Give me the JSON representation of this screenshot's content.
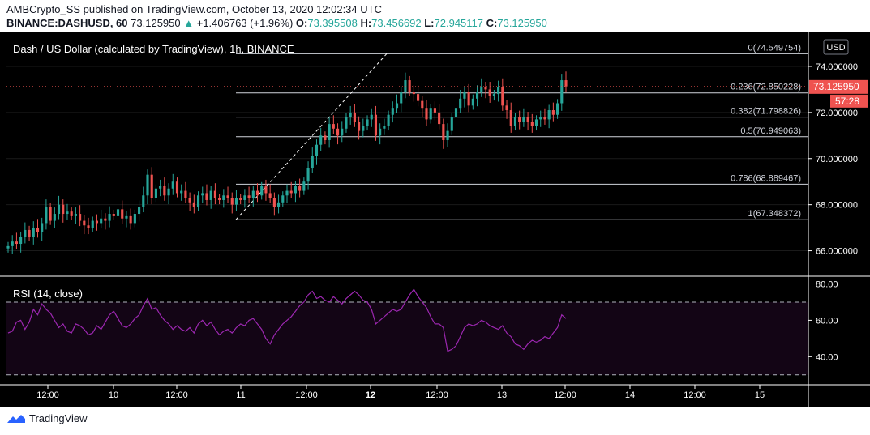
{
  "header": {
    "publisher_line": "AMBCrypto_SS published on TradingView.com, October 13, 2020 12:02:34 UTC",
    "symbol": "BINANCE:DASHUSD, 60",
    "last_price": "73.125950",
    "change_arrow": "▲",
    "change": "+1.406763 (+1.96%)",
    "o_label": "O:",
    "o_value": "73.395508",
    "h_label": "H:",
    "h_value": "73.456692",
    "l_label": "L:",
    "l_value": "72.945117",
    "c_label": "C:",
    "c_value": "73.125950"
  },
  "chart_title": "Dash / US Dollar (calculated by TradingView), 1h, BINANCE",
  "currency_label": "USD",
  "price_tag": "73.125950",
  "countdown_tag": "57:28",
  "rsi_label": "RSI (14, close)",
  "footer_brand": "TradingView",
  "colors": {
    "up": "#26a69a",
    "down": "#ef5350",
    "rsi": "#9c27b0",
    "bg": "#000000",
    "panel_text": "#ffffff"
  },
  "chart_data": {
    "type": "candlestick",
    "price_ticks": [
      "74.000000",
      "72.000000",
      "70.000000",
      "68.000000",
      "66.000000"
    ],
    "price_tick_values": [
      74,
      72,
      70,
      68,
      66
    ],
    "price_range": [
      65.0,
      75.3
    ],
    "rsi_ticks": [
      "80.00",
      "60.00",
      "40.00"
    ],
    "rsi_tick_values": [
      80,
      60,
      40
    ],
    "rsi_range": [
      25,
      82
    ],
    "rsi_bands": [
      70,
      30
    ],
    "x_ticks": [
      "12:00",
      "10",
      "12:00",
      "11",
      "12:00",
      "12",
      "12:00",
      "13",
      "12:00",
      "14",
      "12:00",
      "15"
    ],
    "x_tick_bold": [
      false,
      false,
      false,
      false,
      false,
      true,
      false,
      false,
      false,
      false,
      false,
      false
    ],
    "fib_levels": [
      {
        "label": "0(74.549754)",
        "value": 74.549754
      },
      {
        "label": "0.236(72.850228)",
        "value": 72.850228
      },
      {
        "label": "0.382(71.798826)",
        "value": 71.798826
      },
      {
        "label": "0.5(70.949063)",
        "value": 70.949063
      },
      {
        "label": "0.786(68.889467)",
        "value": 68.889467
      },
      {
        "label": "1(67.348372)",
        "value": 67.348372
      }
    ],
    "candles_close": [
      66.2,
      66.4,
      66.3,
      66.6,
      66.9,
      66.6,
      67.0,
      66.8,
      67.2,
      67.9,
      67.3,
      67.6,
      68.0,
      67.6,
      67.7,
      67.5,
      67.6,
      67.3,
      67.1,
      67.0,
      67.3,
      67.2,
      67.4,
      67.3,
      67.6,
      67.5,
      67.8,
      67.4,
      67.5,
      67.2,
      67.6,
      67.9,
      68.4,
      69.3,
      68.3,
      68.7,
      68.8,
      68.4,
      68.7,
      69.0,
      68.5,
      68.6,
      68.3,
      68.1,
      67.9,
      68.4,
      68.5,
      68.2,
      68.6,
      68.3,
      68.2,
      68.4,
      68.3,
      68.0,
      68.3,
      68.2,
      68.4,
      68.3,
      68.6,
      68.4,
      68.8,
      68.5,
      68.3,
      67.9,
      68.1,
      68.4,
      68.6,
      68.5,
      68.8,
      68.6,
      69.0,
      69.6,
      70.1,
      70.6,
      71.0,
      70.8,
      71.5,
      71.3,
      71.0,
      71.3,
      71.8,
      72.0,
      71.6,
      71.2,
      71.4,
      71.7,
      71.9,
      71.0,
      71.3,
      71.4,
      71.9,
      72.2,
      72.4,
      72.9,
      73.4,
      72.9,
      72.8,
      72.5,
      72.2,
      71.7,
      72.2,
      72.0,
      71.5,
      70.8,
      71.2,
      71.8,
      72.2,
      72.6,
      72.9,
      72.3,
      72.6,
      72.9,
      73.1,
      73.0,
      72.7,
      72.8,
      73.1,
      72.3,
      72.1,
      71.4,
      71.8,
      71.6,
      71.8,
      71.6,
      71.4,
      71.7,
      71.8,
      71.7,
      72.1,
      71.9,
      72.4,
      73.4,
      73.13
    ],
    "rsi_values": [
      53,
      54,
      59,
      60,
      55,
      59,
      66,
      63,
      69,
      66,
      64,
      60,
      56,
      58,
      54,
      53,
      58,
      57,
      55,
      52,
      53,
      57,
      55,
      59,
      63,
      65,
      61,
      57,
      56,
      58,
      61,
      63,
      68,
      72,
      66,
      67,
      63,
      60,
      58,
      55,
      57,
      55,
      54,
      56,
      53,
      58,
      60,
      57,
      59,
      55,
      52,
      54,
      55,
      53,
      56,
      58,
      57,
      60,
      61,
      58,
      55,
      50,
      47,
      52,
      55,
      58,
      60,
      62,
      65,
      68,
      70,
      74,
      76,
      72,
      73,
      71,
      70,
      73,
      71,
      69,
      72,
      74,
      76,
      74,
      71,
      70,
      66,
      58,
      60,
      62,
      64,
      66,
      65,
      66,
      70,
      74,
      77,
      73,
      70,
      67,
      62,
      58,
      58,
      56,
      43,
      44,
      46,
      51,
      56,
      58,
      57,
      58,
      60,
      59,
      57,
      56,
      55,
      57,
      53,
      51,
      47,
      46,
      44,
      47,
      49,
      48,
      49,
      51,
      50,
      53,
      56,
      63,
      61
    ]
  }
}
